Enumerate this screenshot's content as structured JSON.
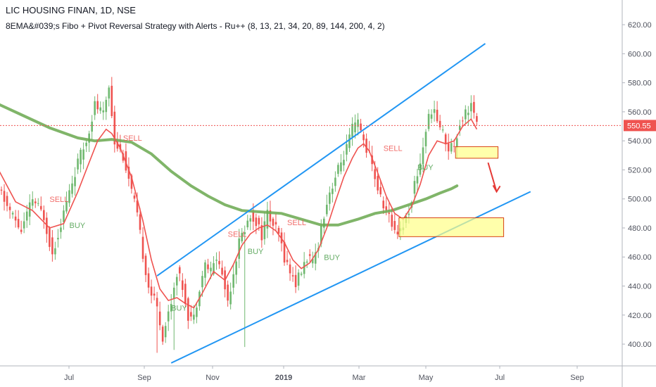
{
  "header": {
    "symbol_line": "LIC HOUSING FINAN, 1D, NSE",
    "indicator_line": "8EMA&#039;s Fibo + Pivot Reversal Strategy with Alerts - Ru++ (8, 13, 21, 34, 20, 89, 144, 200, 4, 2)"
  },
  "colors": {
    "up": "#26a69a",
    "upBody": "#6fb86f",
    "down": "#ef5350",
    "ema_fast": "#ef5350",
    "ema_slow": "#6aa84f",
    "trendline": "#2196f3",
    "zone_fill": "#ffff88",
    "zone_border": "#d84315",
    "last_price_bg": "#ef5350",
    "buy_text": "#4a9e4a",
    "sell_text": "#ef5350"
  },
  "chart_data": {
    "type": "candlestick",
    "x_ticks": [
      "Jul",
      "Sep",
      "Nov",
      "2019",
      "Mar",
      "May",
      "Jul",
      "Sep"
    ],
    "y_ticks": [
      "400.00",
      "420.00",
      "440.00",
      "460.00",
      "480.00",
      "500.00",
      "520.00",
      "540.00",
      "560.00",
      "580.00",
      "600.00",
      "620.00"
    ],
    "ylim": [
      385,
      637
    ],
    "last_price": "550.55",
    "price_path": [
      [
        0,
        508
      ],
      [
        3,
        495
      ],
      [
        8,
        478
      ],
      [
        12,
        500
      ],
      [
        16,
        488
      ],
      [
        19,
        462
      ],
      [
        24,
        498
      ],
      [
        28,
        525
      ],
      [
        31,
        540
      ],
      [
        34,
        565
      ],
      [
        37,
        558
      ],
      [
        39,
        578
      ],
      [
        41,
        540
      ],
      [
        44,
        530
      ],
      [
        47,
        505
      ],
      [
        49,
        488
      ],
      [
        51,
        462
      ],
      [
        53,
        440
      ],
      [
        56,
        425
      ],
      [
        58,
        405
      ],
      [
        61,
        430
      ],
      [
        63,
        450
      ],
      [
        65,
        440
      ],
      [
        67,
        420
      ],
      [
        69,
        418
      ],
      [
        71,
        440
      ],
      [
        73,
        455
      ],
      [
        75,
        450
      ],
      [
        77,
        460
      ],
      [
        79,
        448
      ],
      [
        81,
        430
      ],
      [
        83,
        450
      ],
      [
        85,
        470
      ],
      [
        87,
        480
      ],
      [
        89,
        488
      ],
      [
        91,
        485
      ],
      [
        93,
        475
      ],
      [
        95,
        490
      ],
      [
        97,
        482
      ],
      [
        99,
        475
      ],
      [
        101,
        460
      ],
      [
        103,
        450
      ],
      [
        105,
        442
      ],
      [
        107,
        450
      ],
      [
        109,
        460
      ],
      [
        111,
        455
      ],
      [
        113,
        470
      ],
      [
        115,
        490
      ],
      [
        117,
        505
      ],
      [
        119,
        515
      ],
      [
        121,
        525
      ],
      [
        123,
        535
      ],
      [
        125,
        548
      ],
      [
        127,
        552
      ],
      [
        129,
        540
      ],
      [
        131,
        530
      ],
      [
        133,
        515
      ],
      [
        135,
        500
      ],
      [
        137,
        492
      ],
      [
        139,
        482
      ],
      [
        141,
        478
      ],
      [
        143,
        482
      ],
      [
        145,
        492
      ],
      [
        147,
        510
      ],
      [
        149,
        525
      ],
      [
        151,
        548
      ],
      [
        153,
        562
      ],
      [
        155,
        555
      ],
      [
        157,
        545
      ],
      [
        159,
        535
      ],
      [
        161,
        538
      ],
      [
        163,
        552
      ],
      [
        165,
        560
      ],
      [
        167,
        565
      ],
      [
        169,
        550
      ]
    ],
    "ema_fast": [
      [
        0,
        520
      ],
      [
        6,
        498
      ],
      [
        12,
        492
      ],
      [
        18,
        480
      ],
      [
        23,
        483
      ],
      [
        28,
        505
      ],
      [
        32,
        525
      ],
      [
        35,
        540
      ],
      [
        38,
        548
      ],
      [
        40,
        545
      ],
      [
        43,
        535
      ],
      [
        47,
        515
      ],
      [
        51,
        485
      ],
      [
        54,
        458
      ],
      [
        57,
        438
      ],
      [
        60,
        430
      ],
      [
        63,
        432
      ],
      [
        66,
        428
      ],
      [
        69,
        425
      ],
      [
        72,
        435
      ],
      [
        76,
        450
      ],
      [
        80,
        444
      ],
      [
        83,
        455
      ],
      [
        86,
        468
      ],
      [
        89,
        476
      ],
      [
        92,
        480
      ],
      [
        95,
        482
      ],
      [
        98,
        478
      ],
      [
        101,
        470
      ],
      [
        104,
        458
      ],
      [
        107,
        452
      ],
      [
        110,
        456
      ],
      [
        113,
        465
      ],
      [
        116,
        480
      ],
      [
        119,
        498
      ],
      [
        122,
        515
      ],
      [
        125,
        528
      ],
      [
        127,
        535
      ],
      [
        129,
        538
      ],
      [
        131,
        533
      ],
      [
        134,
        518
      ],
      [
        137,
        502
      ],
      [
        140,
        490
      ],
      [
        143,
        486
      ],
      [
        146,
        495
      ],
      [
        149,
        510
      ],
      [
        152,
        530
      ],
      [
        155,
        540
      ],
      [
        158,
        538
      ],
      [
        161,
        540
      ],
      [
        164,
        550
      ],
      [
        167,
        555
      ],
      [
        169,
        548
      ]
    ],
    "ema_slow": [
      [
        -2,
        567
      ],
      [
        8,
        558
      ],
      [
        18,
        549
      ],
      [
        28,
        542
      ],
      [
        34,
        540
      ],
      [
        40,
        541
      ],
      [
        47,
        539
      ],
      [
        54,
        531
      ],
      [
        61,
        519
      ],
      [
        68,
        509
      ],
      [
        74,
        502
      ],
      [
        80,
        496
      ],
      [
        86,
        492
      ],
      [
        93,
        491
      ],
      [
        100,
        490
      ],
      [
        107,
        486
      ],
      [
        114,
        482
      ],
      [
        120,
        482
      ],
      [
        127,
        486
      ],
      [
        133,
        490
      ],
      [
        139,
        492
      ],
      [
        145,
        496
      ],
      [
        151,
        500
      ],
      [
        156,
        504
      ],
      [
        160,
        507
      ],
      [
        162,
        509
      ]
    ],
    "trendlines": [
      {
        "from": [
          56,
          447
        ],
        "to": [
          172,
          607
        ]
      },
      {
        "from": [
          61,
          387
        ],
        "to": [
          188,
          505
        ]
      }
    ],
    "zones": [
      {
        "x": [
          161.5,
          176.5
        ],
        "y": [
          528,
          536
        ]
      },
      {
        "x": [
          141.5,
          178.5
        ],
        "y": [
          474,
          487
        ]
      }
    ],
    "arrow": {
      "from": [
        173,
        525
      ],
      "to": [
        176,
        505
      ]
    },
    "signals": [
      {
        "label": "SELL",
        "x": 18,
        "y": 498,
        "type": "sell"
      },
      {
        "label": "BUY",
        "x": 25,
        "y": 480,
        "type": "buy"
      },
      {
        "label": "SELL",
        "x": 44,
        "y": 540,
        "type": "sell"
      },
      {
        "label": "BUY",
        "x": 61,
        "y": 423,
        "type": "buy"
      },
      {
        "label": "SELL",
        "x": 81,
        "y": 474,
        "type": "sell"
      },
      {
        "label": "BUY",
        "x": 88,
        "y": 462,
        "type": "buy"
      },
      {
        "label": "SELL",
        "x": 102,
        "y": 482,
        "type": "sell"
      },
      {
        "label": "BUY",
        "x": 115,
        "y": 458,
        "type": "buy"
      },
      {
        "label": "SELL",
        "x": 136,
        "y": 533,
        "type": "sell"
      },
      {
        "label": "BUY",
        "x": 148,
        "y": 520,
        "type": "buy"
      }
    ]
  }
}
